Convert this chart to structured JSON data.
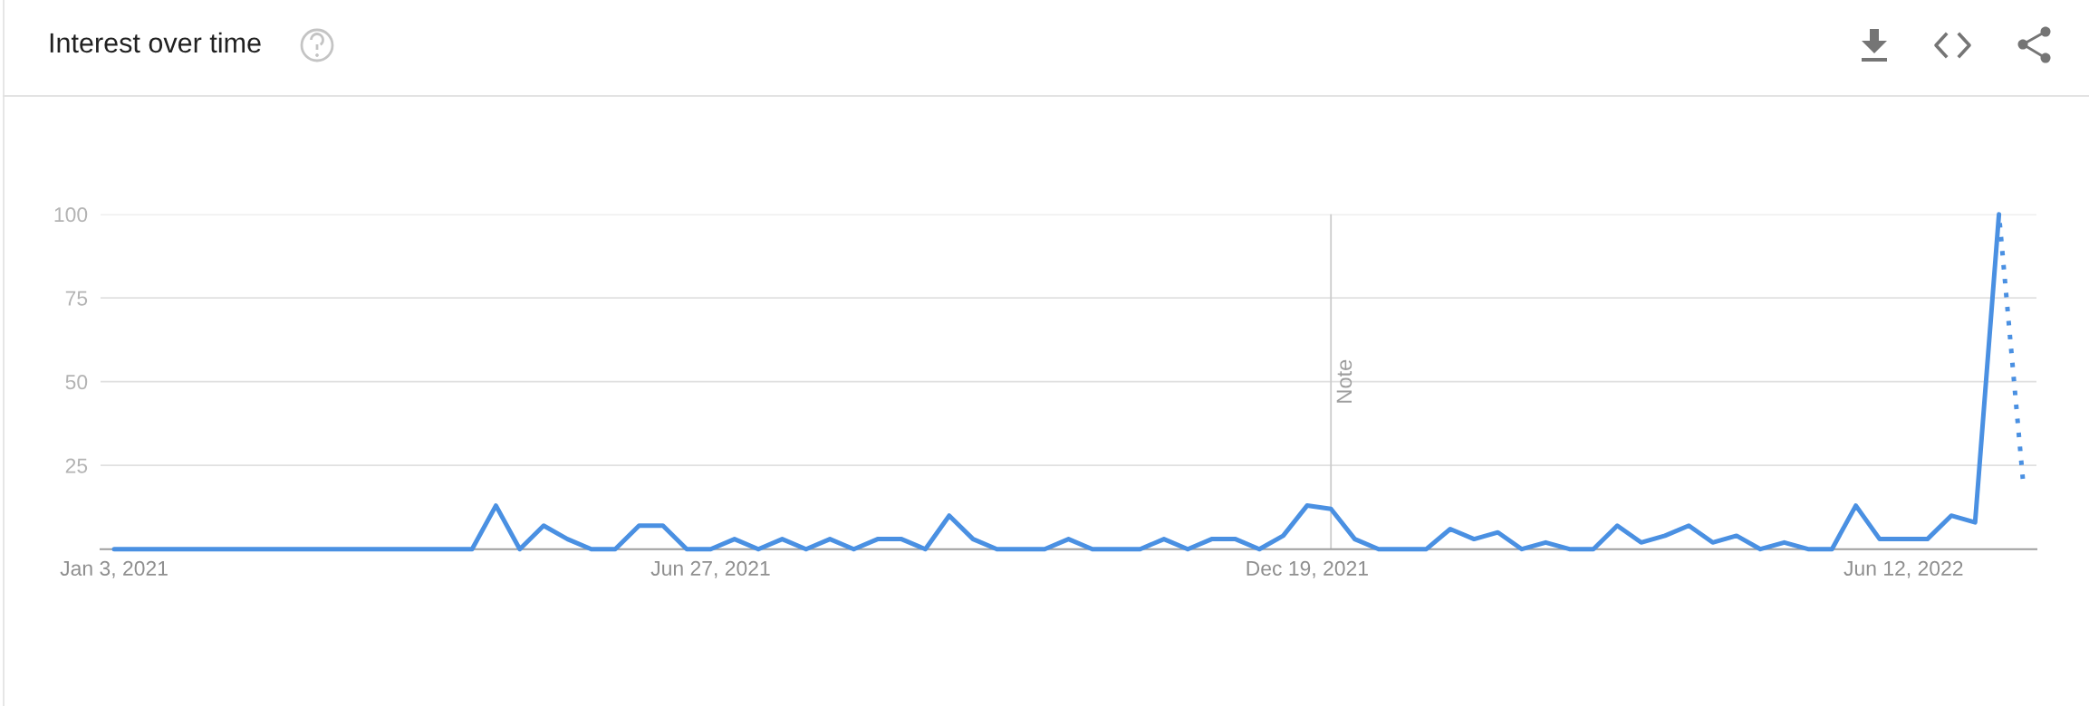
{
  "chart_data": {
    "type": "line",
    "title": "Interest over time",
    "x": [
      "2021-01-03",
      "2021-01-10",
      "2021-01-17",
      "2021-01-24",
      "2021-01-31",
      "2021-02-07",
      "2021-02-14",
      "2021-02-21",
      "2021-02-28",
      "2021-03-07",
      "2021-03-14",
      "2021-03-21",
      "2021-03-28",
      "2021-04-04",
      "2021-04-11",
      "2021-04-18",
      "2021-04-25",
      "2021-05-02",
      "2021-05-09",
      "2021-05-16",
      "2021-05-23",
      "2021-05-30",
      "2021-06-06",
      "2021-06-13",
      "2021-06-20",
      "2021-06-27",
      "2021-07-04",
      "2021-07-11",
      "2021-07-18",
      "2021-07-25",
      "2021-08-01",
      "2021-08-08",
      "2021-08-15",
      "2021-08-22",
      "2021-08-29",
      "2021-09-05",
      "2021-09-12",
      "2021-09-19",
      "2021-09-26",
      "2021-10-03",
      "2021-10-10",
      "2021-10-17",
      "2021-10-24",
      "2021-10-31",
      "2021-11-07",
      "2021-11-14",
      "2021-11-21",
      "2021-11-28",
      "2021-12-05",
      "2021-12-12",
      "2021-12-19",
      "2021-12-26",
      "2022-01-02",
      "2022-01-09",
      "2022-01-16",
      "2022-01-23",
      "2022-01-30",
      "2022-02-06",
      "2022-02-13",
      "2022-02-20",
      "2022-02-27",
      "2022-03-06",
      "2022-03-13",
      "2022-03-20",
      "2022-03-27",
      "2022-04-03",
      "2022-04-10",
      "2022-04-17",
      "2022-04-24",
      "2022-05-01",
      "2022-05-08",
      "2022-05-15",
      "2022-05-22",
      "2022-05-29",
      "2022-06-05",
      "2022-06-12",
      "2022-06-19",
      "2022-06-26",
      "2022-07-03",
      "2022-07-10",
      "2022-07-17"
    ],
    "series": [
      {
        "color": "#4a90e2",
        "values": [
          0,
          0,
          0,
          0,
          0,
          0,
          0,
          0,
          0,
          0,
          0,
          0,
          0,
          0,
          0,
          0,
          13,
          0,
          7,
          3,
          0,
          0,
          7,
          7,
          0,
          0,
          3,
          0,
          3,
          0,
          3,
          0,
          3,
          3,
          0,
          10,
          3,
          0,
          0,
          0,
          3,
          0,
          0,
          0,
          3,
          0,
          3,
          3,
          0,
          4,
          13,
          12,
          3,
          0,
          0,
          0,
          6,
          3,
          5,
          0,
          2,
          0,
          0,
          7,
          2,
          4,
          7,
          2,
          4,
          0,
          2,
          0,
          0,
          13,
          3,
          3,
          3,
          10,
          8,
          100,
          null
        ]
      },
      {
        "color": "#4a90e2",
        "line_style": "dotted",
        "values": [
          null,
          null,
          null,
          null,
          null,
          null,
          null,
          null,
          null,
          null,
          null,
          null,
          null,
          null,
          null,
          null,
          null,
          null,
          null,
          null,
          null,
          null,
          null,
          null,
          null,
          null,
          null,
          null,
          null,
          null,
          null,
          null,
          null,
          null,
          null,
          null,
          null,
          null,
          null,
          null,
          null,
          null,
          null,
          null,
          null,
          null,
          null,
          null,
          null,
          null,
          null,
          null,
          null,
          null,
          null,
          null,
          null,
          null,
          null,
          null,
          null,
          null,
          null,
          null,
          null,
          null,
          null,
          null,
          null,
          null,
          null,
          null,
          null,
          null,
          null,
          null,
          null,
          null,
          null,
          100,
          21
        ]
      }
    ],
    "xlim": [
      "2020-12-30",
      "2022-07-21"
    ],
    "xticks": [
      {
        "value": "2021-01-03",
        "label": "Jan 3, 2021"
      },
      {
        "value": "2021-06-27",
        "label": "Jun 27, 2021"
      },
      {
        "value": "2021-12-19",
        "label": "Dec 19, 2021"
      },
      {
        "value": "2022-06-12",
        "label": "Jun 12, 2022"
      }
    ],
    "ylim": [
      0,
      100
    ],
    "yticks": [
      25,
      50,
      75,
      100
    ],
    "grid": "y",
    "ref_lines": [
      {
        "axis": "x",
        "value": "2021-12-26",
        "label": "Note",
        "color": "#cccccc"
      }
    ]
  }
}
